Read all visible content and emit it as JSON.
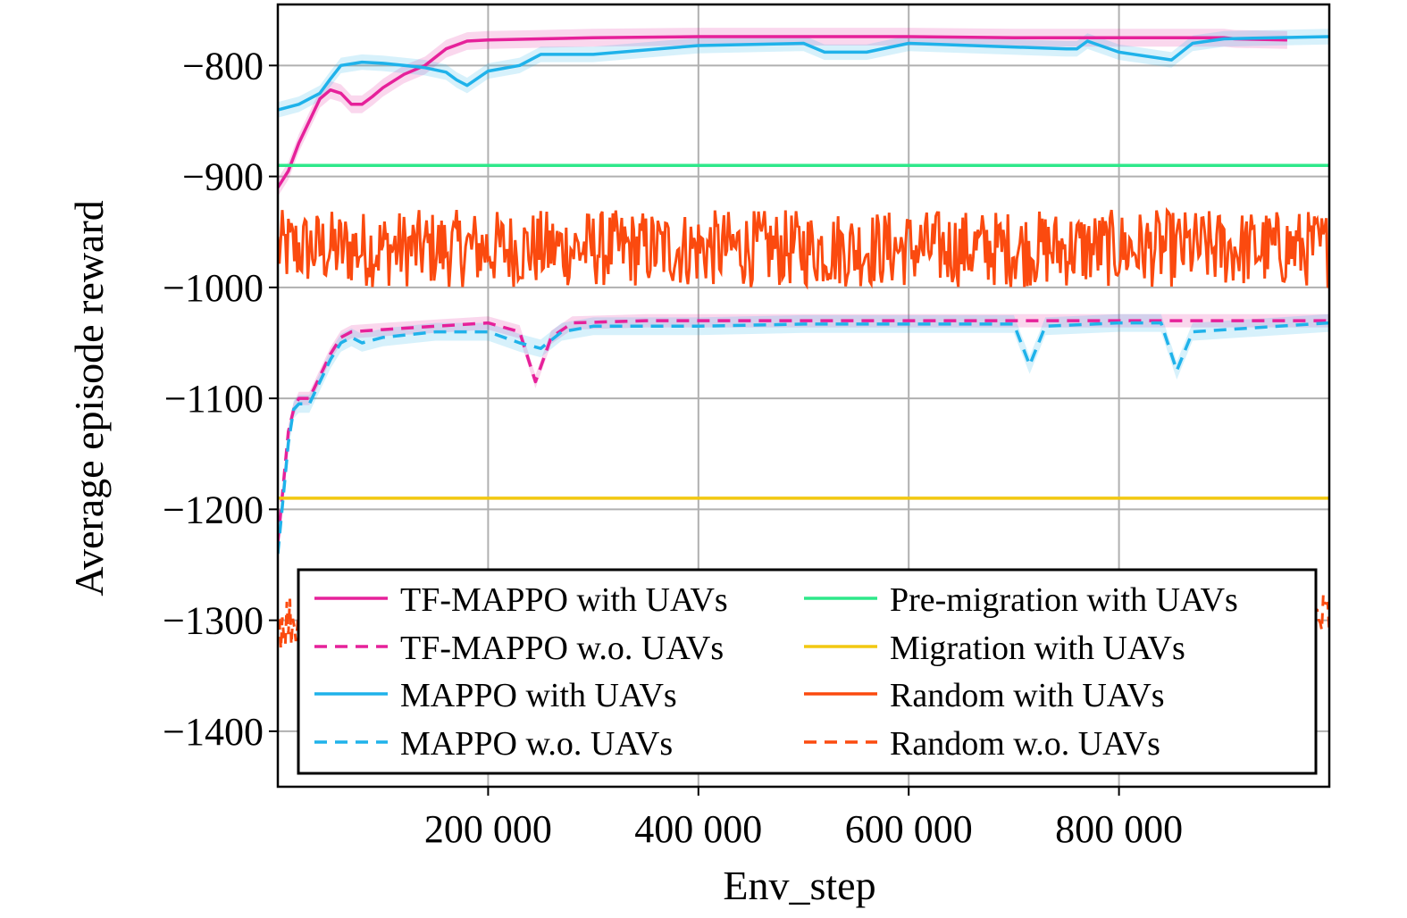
{
  "chart_data": {
    "type": "line",
    "title": "",
    "xlabel": "Env_step",
    "ylabel": "Average episode reward",
    "xlim": [
      0,
      1000000
    ],
    "ylim": [
      -1450,
      -745
    ],
    "xticks": [
      200000,
      400000,
      600000,
      800000
    ],
    "xtick_labels": [
      "200 000",
      "400 000",
      "600 000",
      "800 000"
    ],
    "yticks": [
      -800,
      -900,
      -1000,
      -1100,
      -1200,
      -1300,
      -1400
    ],
    "ytick_labels": [
      "−800",
      "−900",
      "−1000",
      "−1100",
      "−1200",
      "−1300",
      "−1400"
    ],
    "grid": true,
    "legend_position": "bottom",
    "series": [
      {
        "name": "TF-MAPPO with UAVs",
        "color": "#e6219a",
        "style": "solid",
        "x": [
          0,
          10000,
          20000,
          30000,
          40000,
          50000,
          60000,
          70000,
          80000,
          90000,
          100000,
          120000,
          140000,
          160000,
          180000,
          200000,
          250000,
          300000,
          400000,
          500000,
          600000,
          700000,
          800000,
          900000,
          910000,
          960000
        ],
        "y": [
          -910,
          -895,
          -870,
          -850,
          -830,
          -822,
          -825,
          -835,
          -835,
          -828,
          -820,
          -808,
          -800,
          -785,
          -778,
          -777,
          -776,
          -775,
          -774,
          -774,
          -774,
          -775,
          -775,
          -775,
          -776,
          -777
        ]
      },
      {
        "name": "TF-MAPPO w.o. UAVs",
        "color": "#e6219a",
        "style": "dashed",
        "x": [
          0,
          5000,
          10000,
          15000,
          20000,
          30000,
          40000,
          50000,
          60000,
          70000,
          100000,
          150000,
          200000,
          230000,
          245000,
          260000,
          280000,
          350000,
          450000,
          550000,
          650000,
          750000,
          850000,
          1000000
        ],
        "y": [
          -1230,
          -1180,
          -1130,
          -1110,
          -1100,
          -1100,
          -1080,
          -1060,
          -1045,
          -1040,
          -1038,
          -1035,
          -1032,
          -1040,
          -1085,
          -1045,
          -1032,
          -1030,
          -1030,
          -1030,
          -1030,
          -1030,
          -1030,
          -1030
        ]
      },
      {
        "name": "MAPPO with UAVs",
        "color": "#1fb2ea",
        "style": "solid",
        "x": [
          0,
          20000,
          40000,
          50000,
          60000,
          80000,
          100000,
          120000,
          140000,
          160000,
          170000,
          180000,
          200000,
          230000,
          250000,
          300000,
          400000,
          500000,
          520000,
          560000,
          600000,
          750000,
          760000,
          770000,
          800000,
          850000,
          870000,
          900000,
          1000000
        ],
        "y": [
          -840,
          -835,
          -825,
          -812,
          -800,
          -797,
          -798,
          -800,
          -802,
          -806,
          -813,
          -818,
          -805,
          -800,
          -790,
          -790,
          -782,
          -780,
          -788,
          -788,
          -780,
          -785,
          -785,
          -778,
          -788,
          -795,
          -780,
          -776,
          -774
        ]
      },
      {
        "name": "MAPPO w.o. UAVs",
        "color": "#1fb2ea",
        "style": "dashed",
        "x": [
          0,
          5000,
          10000,
          15000,
          20000,
          30000,
          40000,
          50000,
          60000,
          70000,
          80000,
          100000,
          150000,
          200000,
          230000,
          250000,
          270000,
          300000,
          400000,
          500000,
          600000,
          700000,
          715000,
          730000,
          800000,
          840000,
          855000,
          870000,
          1000000
        ],
        "y": [
          -1240,
          -1190,
          -1140,
          -1110,
          -1105,
          -1105,
          -1085,
          -1065,
          -1050,
          -1045,
          -1050,
          -1045,
          -1040,
          -1040,
          -1050,
          -1055,
          -1040,
          -1035,
          -1035,
          -1033,
          -1033,
          -1033,
          -1070,
          -1035,
          -1032,
          -1032,
          -1075,
          -1040,
          -1032
        ]
      },
      {
        "name": "Pre-migration with UAVs",
        "color": "#2ee88a",
        "style": "solid",
        "x": [
          0,
          1000000
        ],
        "y": [
          -890,
          -890
        ]
      },
      {
        "name": "Migration with UAVs",
        "color": "#f2c811",
        "style": "solid",
        "x": [
          0,
          1000000
        ],
        "y": [
          -1190,
          -1190
        ]
      },
      {
        "name": "Random with UAVs",
        "color": "#fb4a0f",
        "style": "solid",
        "x": [
          0,
          1000000
        ],
        "y": [
          -965,
          -965
        ],
        "y_range": [
          -1000,
          -930
        ]
      },
      {
        "name": "Random w.o. UAVs",
        "color": "#fb4a0f",
        "style": "dashed",
        "x": [
          0,
          1000000
        ],
        "y": [
          -1300,
          -1300
        ],
        "y_range": [
          -1410,
          -1250
        ]
      }
    ]
  }
}
